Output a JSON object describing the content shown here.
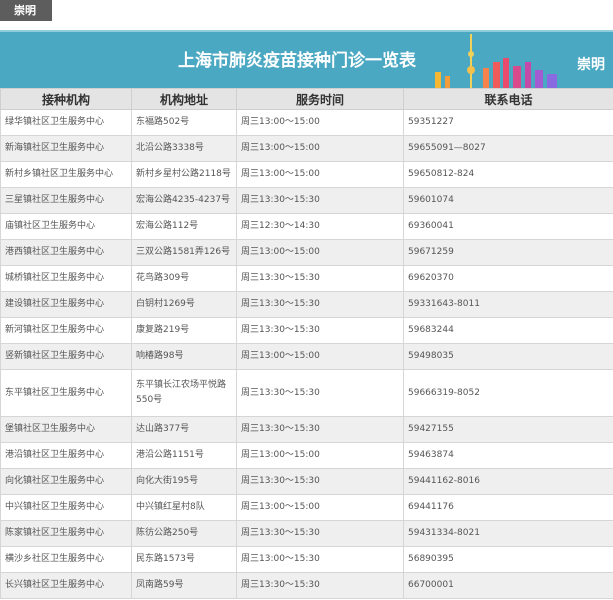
{
  "tag": "崇明",
  "banner": {
    "title": "上海市肺炎疫苗接种门诊一览表",
    "district": "崇明"
  },
  "table": {
    "headers": [
      "接种机构",
      "机构地址",
      "服务时间",
      "联系电话"
    ],
    "rows": [
      [
        "绿华镇社区卫生服务中心",
        "东福路502号",
        "周三13:00～15:00",
        "59351227"
      ],
      [
        "新海镇社区卫生服务中心",
        "北沿公路3338号",
        "周三13:00～15:00",
        "59655091—8027"
      ],
      [
        "新村乡镇社区卫生服务中心",
        "新村乡星村公路2118号",
        "周三13:00～15:00",
        "59650812-824"
      ],
      [
        "三星镇社区卫生服务中心",
        "宏海公路4235-4237号",
        "周三13:30～15:30",
        "59601074"
      ],
      [
        "庙镇社区卫生服务中心",
        "宏海公路112号",
        "周三12:30～14:30",
        "69360041"
      ],
      [
        "港西镇社区卫生服务中心",
        "三双公路1581弄126号",
        "周三13:00～15:00",
        "59671259"
      ],
      [
        "城桥镇社区卫生服务中心",
        "花鸟路309号",
        "周三13:30～15:30",
        "69620370"
      ],
      [
        "建设镇社区卫生服务中心",
        "白钥村1269号",
        "周三13:30～15:30",
        "59331643-8011"
      ],
      [
        "新河镇社区卫生服务中心",
        "康复路219号",
        "周三13:30～15:30",
        "59683244"
      ],
      [
        "竖新镇社区卫生服务中心",
        "响椿路98号",
        "周三13:00～15:00",
        "59498035"
      ],
      [
        "东平镇社区卫生服务中心",
        "东平镇长江农场平悦路550号",
        "周三13:30～15:30",
        "59666319-8052"
      ],
      [
        "堡镇社区卫生服务中心",
        "达山路377号",
        "周三13:30～15:30",
        "59427155"
      ],
      [
        "港沿镇社区卫生服务中心",
        "港沿公路1151号",
        "周三13:00～15:00",
        "59463874"
      ],
      [
        "向化镇社区卫生服务中心",
        "向化大街195号",
        "周三13:30～15:30",
        "59441162-8016"
      ],
      [
        "中兴镇社区卫生服务中心",
        "中兴镇红星村8队",
        "周三13:00～15:00",
        "69441176"
      ],
      [
        "陈家镇社区卫生服务中心",
        "陈彷公路250号",
        "周三13:30～15:30",
        "59431334-8021"
      ],
      [
        "横沙乡社区卫生服务中心",
        "民东路1573号",
        "周三13:00～15:30",
        "56890395"
      ],
      [
        "长兴镇社区卫生服务中心",
        "凤南路59号",
        "周三13:30～15:30",
        "66700001"
      ]
    ]
  }
}
